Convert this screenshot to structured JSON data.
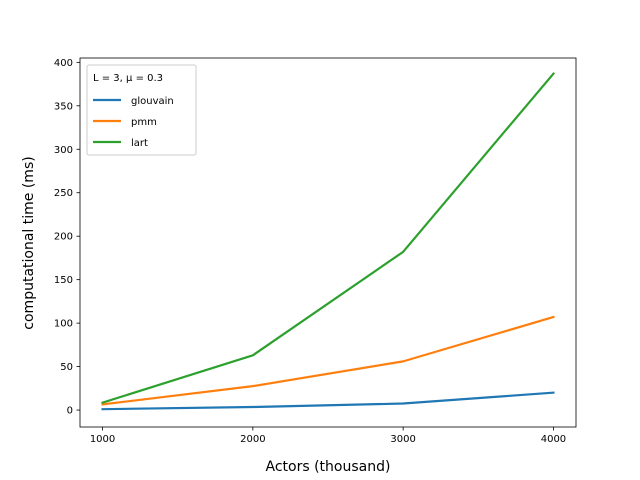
{
  "chart_data": {
    "type": "line",
    "title": "",
    "xlabel": "Actors (thousand)",
    "ylabel": "computational time (ms)",
    "x": [
      1000,
      2000,
      3000,
      4000
    ],
    "xticks": [
      1000,
      2000,
      3000,
      4000
    ],
    "xticklabels": [
      "1000",
      "2000",
      "3000",
      "4000"
    ],
    "yticks": [
      0,
      50,
      100,
      150,
      200,
      250,
      300,
      350,
      400
    ],
    "yticklabels": [
      "0",
      "50",
      "100",
      "150",
      "200",
      "250",
      "300",
      "350",
      "400"
    ],
    "xlim": [
      850,
      4150
    ],
    "ylim": [
      -19.5,
      405
    ],
    "grid": false,
    "legend": {
      "title": "L = 3, μ = 0.3",
      "placement": "upper left"
    },
    "series": [
      {
        "name": "glouvain",
        "color": "#1f77b4",
        "values": [
          1,
          3.5,
          7.5,
          20
        ]
      },
      {
        "name": "pmm",
        "color": "#ff7f0e",
        "values": [
          6.5,
          27.5,
          56,
          107
        ]
      },
      {
        "name": "lart",
        "color": "#2ca02c",
        "values": [
          8.5,
          63,
          182,
          387
        ]
      }
    ]
  }
}
